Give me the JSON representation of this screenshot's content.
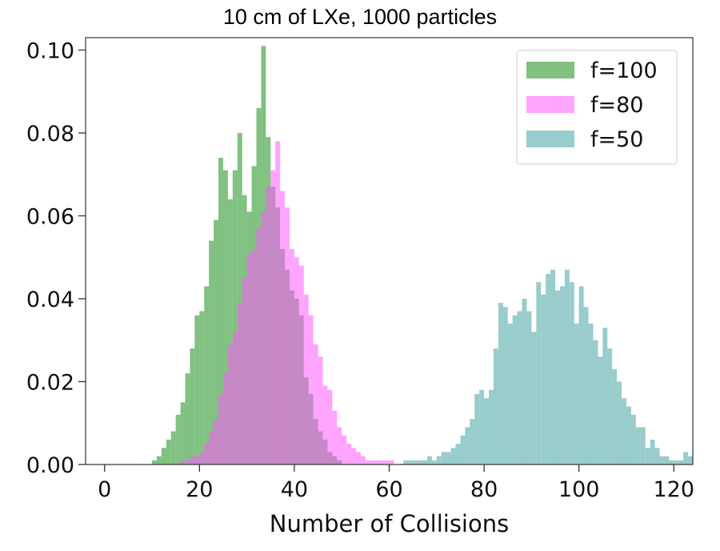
{
  "chart_data": {
    "type": "bar",
    "title": "10 cm of LXe, 1000 particles",
    "xlabel": "Number of Collisions",
    "ylabel": "",
    "xlim": [
      -4,
      124
    ],
    "ylim": [
      0,
      0.103
    ],
    "xticks": [
      0,
      20,
      40,
      60,
      80,
      100,
      120
    ],
    "xtick_labels": [
      "0",
      "20",
      "40",
      "60",
      "80",
      "100",
      "120"
    ],
    "yticks": [
      0.0,
      0.02,
      0.04,
      0.06,
      0.08,
      0.1
    ],
    "ytick_labels": [
      "0.00",
      "0.02",
      "0.04",
      "0.06",
      "0.08",
      "0.10"
    ],
    "bin_width": 1,
    "legend_position": "top-right",
    "grid": false,
    "series": [
      {
        "name": "f=100",
        "color": "#4ca64c",
        "opacity": 0.7,
        "bins": [
          [
            10,
            0.001
          ],
          [
            11,
            0.002
          ],
          [
            12,
            0.004
          ],
          [
            13,
            0.006
          ],
          [
            14,
            0.008
          ],
          [
            15,
            0.012
          ],
          [
            16,
            0.015
          ],
          [
            17,
            0.022
          ],
          [
            18,
            0.028
          ],
          [
            19,
            0.036
          ],
          [
            20,
            0.037
          ],
          [
            21,
            0.043
          ],
          [
            22,
            0.054
          ],
          [
            23,
            0.059
          ],
          [
            24,
            0.074
          ],
          [
            25,
            0.071
          ],
          [
            26,
            0.064
          ],
          [
            27,
            0.071
          ],
          [
            28,
            0.08
          ],
          [
            29,
            0.065
          ],
          [
            30,
            0.061
          ],
          [
            31,
            0.072
          ],
          [
            32,
            0.086
          ],
          [
            33,
            0.101
          ],
          [
            34,
            0.079
          ],
          [
            35,
            0.067
          ],
          [
            36,
            0.062
          ],
          [
            37,
            0.052
          ],
          [
            38,
            0.047
          ],
          [
            39,
            0.042
          ],
          [
            40,
            0.04
          ],
          [
            41,
            0.036
          ],
          [
            42,
            0.021
          ],
          [
            43,
            0.017
          ],
          [
            44,
            0.011
          ],
          [
            45,
            0.008
          ],
          [
            46,
            0.006
          ],
          [
            47,
            0.003
          ],
          [
            48,
            0.002
          ],
          [
            49,
            0.001
          ]
        ]
      },
      {
        "name": "f=80",
        "color": "#ff59ff",
        "opacity": 0.55,
        "bins": [
          [
            16,
            0.001
          ],
          [
            17,
            0.001
          ],
          [
            18,
            0.002
          ],
          [
            19,
            0.002
          ],
          [
            20,
            0.003
          ],
          [
            21,
            0.005
          ],
          [
            22,
            0.008
          ],
          [
            23,
            0.011
          ],
          [
            24,
            0.017
          ],
          [
            25,
            0.022
          ],
          [
            26,
            0.029
          ],
          [
            27,
            0.032
          ],
          [
            28,
            0.039
          ],
          [
            29,
            0.045
          ],
          [
            30,
            0.051
          ],
          [
            31,
            0.052
          ],
          [
            32,
            0.057
          ],
          [
            33,
            0.061
          ],
          [
            34,
            0.067
          ],
          [
            35,
            0.071
          ],
          [
            36,
            0.078
          ],
          [
            37,
            0.066
          ],
          [
            38,
            0.062
          ],
          [
            39,
            0.052
          ],
          [
            40,
            0.05
          ],
          [
            41,
            0.048
          ],
          [
            42,
            0.041
          ],
          [
            43,
            0.036
          ],
          [
            44,
            0.029
          ],
          [
            45,
            0.026
          ],
          [
            46,
            0.019
          ],
          [
            47,
            0.018
          ],
          [
            48,
            0.013
          ],
          [
            49,
            0.009
          ],
          [
            50,
            0.007
          ],
          [
            51,
            0.005
          ],
          [
            52,
            0.004
          ],
          [
            53,
            0.003
          ],
          [
            54,
            0.002
          ],
          [
            55,
            0.001
          ],
          [
            56,
            0.001
          ],
          [
            57,
            0.001
          ],
          [
            58,
            0.001
          ],
          [
            59,
            0.001
          ],
          [
            60,
            0.001
          ]
        ]
      },
      {
        "name": "f=50",
        "color": "#45a3a3",
        "opacity": 0.55,
        "bins": [
          [
            63,
            0.001
          ],
          [
            64,
            0.001
          ],
          [
            65,
            0.001
          ],
          [
            66,
            0.001
          ],
          [
            67,
            0.001
          ],
          [
            68,
            0.002
          ],
          [
            69,
            0.001
          ],
          [
            70,
            0.002
          ],
          [
            71,
            0.003
          ],
          [
            72,
            0.003
          ],
          [
            73,
            0.004
          ],
          [
            74,
            0.005
          ],
          [
            75,
            0.007
          ],
          [
            76,
            0.009
          ],
          [
            77,
            0.011
          ],
          [
            78,
            0.017
          ],
          [
            79,
            0.018
          ],
          [
            80,
            0.016
          ],
          [
            81,
            0.018
          ],
          [
            82,
            0.028
          ],
          [
            83,
            0.039
          ],
          [
            84,
            0.038
          ],
          [
            85,
            0.034
          ],
          [
            86,
            0.036
          ],
          [
            87,
            0.037
          ],
          [
            88,
            0.04
          ],
          [
            89,
            0.037
          ],
          [
            90,
            0.032
          ],
          [
            91,
            0.044
          ],
          [
            92,
            0.041
          ],
          [
            93,
            0.046
          ],
          [
            94,
            0.047
          ],
          [
            95,
            0.042
          ],
          [
            96,
            0.043
          ],
          [
            97,
            0.047
          ],
          [
            98,
            0.044
          ],
          [
            99,
            0.034
          ],
          [
            100,
            0.043
          ],
          [
            101,
            0.038
          ],
          [
            102,
            0.034
          ],
          [
            103,
            0.03
          ],
          [
            104,
            0.026
          ],
          [
            105,
            0.033
          ],
          [
            106,
            0.028
          ],
          [
            107,
            0.023
          ],
          [
            108,
            0.02
          ],
          [
            109,
            0.016
          ],
          [
            110,
            0.014
          ],
          [
            111,
            0.012
          ],
          [
            112,
            0.009
          ],
          [
            113,
            0.009
          ],
          [
            114,
            0.004
          ],
          [
            115,
            0.006
          ],
          [
            116,
            0.004
          ],
          [
            117,
            0.002
          ],
          [
            118,
            0.002
          ],
          [
            119,
            0.001
          ],
          [
            120,
            0.001
          ],
          [
            121,
            0.001
          ],
          [
            122,
            0.003
          ],
          [
            123,
            0.002
          ]
        ]
      }
    ]
  }
}
